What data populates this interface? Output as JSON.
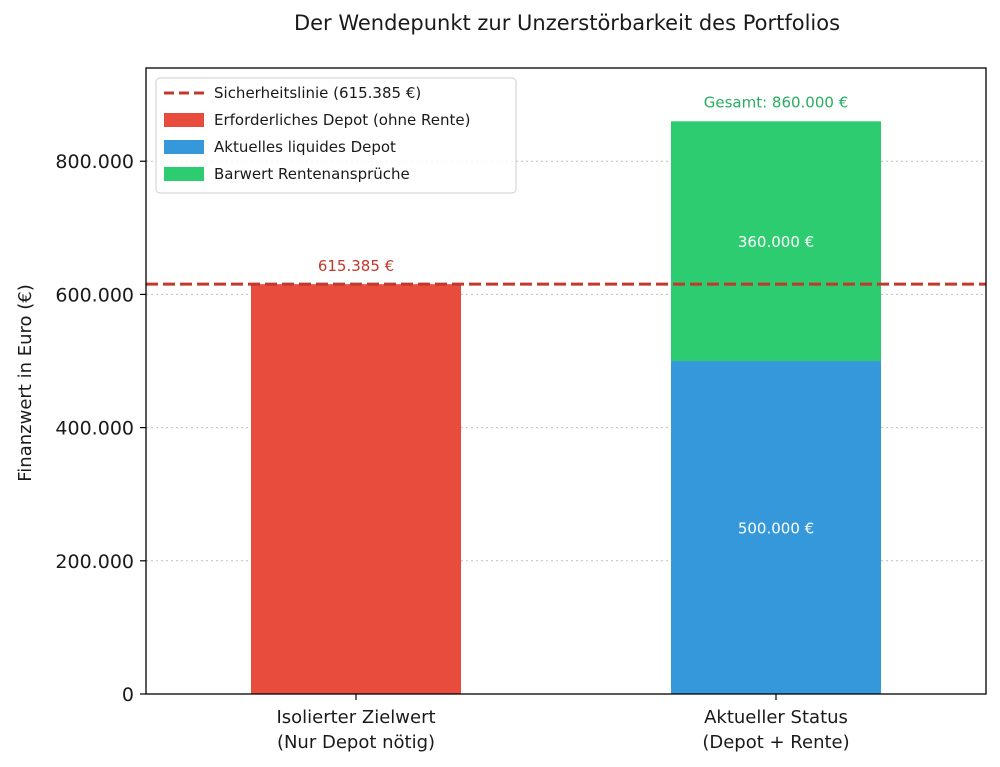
{
  "chart_data": {
    "type": "bar",
    "stacked": true,
    "title": "Der Wendepunkt zur Unzerstörbarkeit des Portfolios",
    "ylabel": "Finanzwert in Euro (€)",
    "xlabel": "",
    "ylim": [
      0,
      940000
    ],
    "yticks": [
      0,
      200000,
      400000,
      600000,
      800000
    ],
    "ytick_labels": [
      "0",
      "200.000",
      "400.000",
      "600.000",
      "800.000"
    ],
    "grid": "y-dotted",
    "legend_position": "top-left",
    "categories": [
      [
        "Isolierter Zielwert",
        "(Nur Depot nötig)"
      ],
      [
        "Aktueller Status",
        "(Depot + Rente)"
      ]
    ],
    "series": [
      {
        "name": "Erforderliches Depot (ohne Rente)",
        "color": "#e74c3c",
        "values": [
          615385,
          0
        ],
        "labels": [
          "615.385 €",
          ""
        ],
        "label_position": "above"
      },
      {
        "name": "Aktuelles liquides Depot",
        "color": "#3498db",
        "values": [
          0,
          500000
        ],
        "labels": [
          "",
          "500.000 €"
        ],
        "label_position": "inside"
      },
      {
        "name": "Barwert Rentenansprüche",
        "color": "#2ecc71",
        "values": [
          0,
          360000
        ],
        "labels": [
          "",
          "360.000 €"
        ],
        "label_position": "inside"
      }
    ],
    "hline": {
      "name": "Sicherheitslinie (615.385 €)",
      "value": 615385,
      "color": "#c0392b",
      "style": "dashed"
    },
    "annotations": [
      {
        "text": "Gesamt: 860.000 €",
        "category": 1,
        "value": 860000,
        "color": "#27ae60"
      }
    ]
  }
}
